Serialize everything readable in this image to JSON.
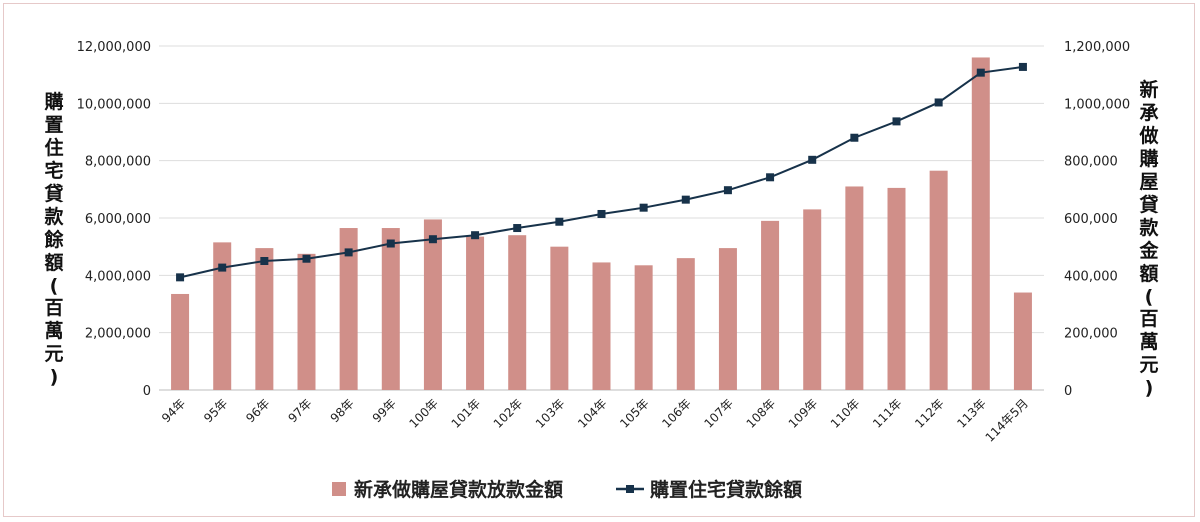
{
  "chart_data": {
    "type": "bar+line",
    "categories": [
      "94年",
      "95年",
      "96年",
      "97年",
      "98年",
      "99年",
      "100年",
      "101年",
      "102年",
      "103年",
      "104年",
      "105年",
      "106年",
      "107年",
      "108年",
      "109年",
      "110年",
      "111年",
      "112年",
      "113年",
      "114年5月"
    ],
    "series": [
      {
        "name": "新承做購屋貸款放款金額",
        "type": "bar",
        "axis": "right",
        "color": "#d08f89",
        "values": [
          335000,
          515000,
          495000,
          475000,
          565000,
          565000,
          595000,
          535000,
          540000,
          500000,
          445000,
          435000,
          460000,
          495000,
          590000,
          630000,
          710000,
          705000,
          765000,
          1160000,
          340000
        ]
      },
      {
        "name": "購置住宅貸款餘額",
        "type": "line",
        "axis": "left",
        "color": "#17324a",
        "values": [
          3930000,
          4270000,
          4500000,
          4580000,
          4800000,
          5110000,
          5260000,
          5400000,
          5650000,
          5870000,
          6140000,
          6360000,
          6640000,
          6970000,
          7420000,
          8030000,
          8800000,
          9370000,
          10030000,
          11070000,
          11270000
        ]
      }
    ],
    "left_axis": {
      "label": "購置住宅貸款餘額(百萬元)",
      "ylim": [
        0,
        12000000
      ],
      "ticks": [
        "0",
        "2,000,000",
        "4,000,000",
        "6,000,000",
        "8,000,000",
        "10,000,000",
        "12,000,000"
      ]
    },
    "right_axis": {
      "label": "新承做購屋貸款金額(百萬元)",
      "ylim": [
        0,
        1200000
      ],
      "ticks": [
        "0",
        "200,000",
        "400,000",
        "600,000",
        "800,000",
        "1,000,000",
        "1,200,000"
      ]
    },
    "grid": true,
    "legend_position": "bottom"
  }
}
